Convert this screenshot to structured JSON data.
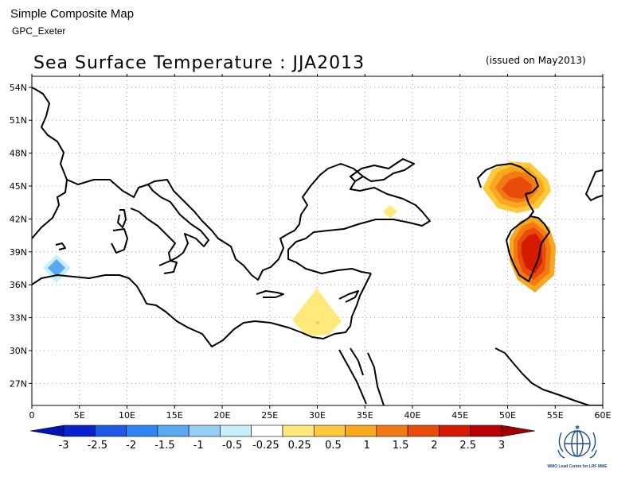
{
  "header": {
    "app_title": "Simple Composite Map",
    "subtitle": "GPC_Exeter",
    "map_title": "Sea Surface Temperature : JJA2013",
    "issued": "(issued on May2013)"
  },
  "map": {
    "lon_range": [
      0,
      60
    ],
    "lat_range": [
      25,
      55
    ],
    "x_ticks": [
      "0",
      "5E",
      "10E",
      "15E",
      "20E",
      "25E",
      "30E",
      "35E",
      "40E",
      "45E",
      "50E",
      "55E",
      "60E"
    ],
    "y_ticks": [
      "54N",
      "51N",
      "48N",
      "45N",
      "42N",
      "39N",
      "36N",
      "33N",
      "30N",
      "27N"
    ],
    "grid": "dotted"
  },
  "legend": {
    "labels": [
      "-3",
      "-2.5",
      "-2",
      "-1.5",
      "-1",
      "-0.5",
      "-0.25",
      "0.25",
      "0.5",
      "1",
      "1.5",
      "2",
      "2.5",
      "3"
    ],
    "colors": [
      "#0a22cc",
      "#1e5ae6",
      "#2f86f2",
      "#5aa8f2",
      "#96cdf4",
      "#c8eef8",
      "#ffffff",
      "#ffe97a",
      "#ffc93c",
      "#f8a81e",
      "#f27a14",
      "#e84b0a",
      "#d41a00",
      "#b80000"
    ],
    "end_low": "#0014b4",
    "end_high": "#a00000"
  },
  "logo": {
    "name": "wmo-emblem",
    "caption": "WMO Lead Centre for LRF MME"
  }
}
